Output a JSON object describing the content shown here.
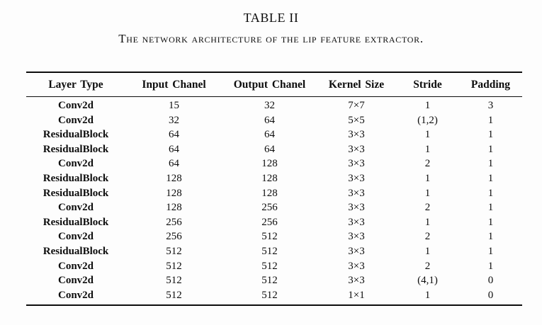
{
  "page": {
    "title": "TABLE II",
    "caption": "The network architecture of the lip feature extractor."
  },
  "colors": {
    "text": "#0d0d0d",
    "rule": "#0d0d0d",
    "background": "#fdfdfd"
  },
  "table": {
    "columns": [
      "Layer Type",
      "Input Chanel",
      "Output Chanel",
      "Kernel Size",
      "Stride",
      "Padding"
    ],
    "rows": [
      [
        "Conv2d",
        "15",
        "32",
        "7×7",
        "1",
        "3"
      ],
      [
        "Conv2d",
        "32",
        "64",
        "5×5",
        "(1,2)",
        "1"
      ],
      [
        "ResidualBlock",
        "64",
        "64",
        "3×3",
        "1",
        "1"
      ],
      [
        "ResidualBlock",
        "64",
        "64",
        "3×3",
        "1",
        "1"
      ],
      [
        "Conv2d",
        "64",
        "128",
        "3×3",
        "2",
        "1"
      ],
      [
        "ResidualBlock",
        "128",
        "128",
        "3×3",
        "1",
        "1"
      ],
      [
        "ResidualBlock",
        "128",
        "128",
        "3×3",
        "1",
        "1"
      ],
      [
        "Conv2d",
        "128",
        "256",
        "3×3",
        "2",
        "1"
      ],
      [
        "ResidualBlock",
        "256",
        "256",
        "3×3",
        "1",
        "1"
      ],
      [
        "Conv2d",
        "256",
        "512",
        "3×3",
        "2",
        "1"
      ],
      [
        "ResidualBlock",
        "512",
        "512",
        "3×3",
        "1",
        "1"
      ],
      [
        "Conv2d",
        "512",
        "512",
        "3×3",
        "2",
        "1"
      ],
      [
        "Conv2d",
        "512",
        "512",
        "3×3",
        "(4,1)",
        "0"
      ],
      [
        "Conv2d",
        "512",
        "512",
        "1×1",
        "1",
        "0"
      ]
    ]
  }
}
